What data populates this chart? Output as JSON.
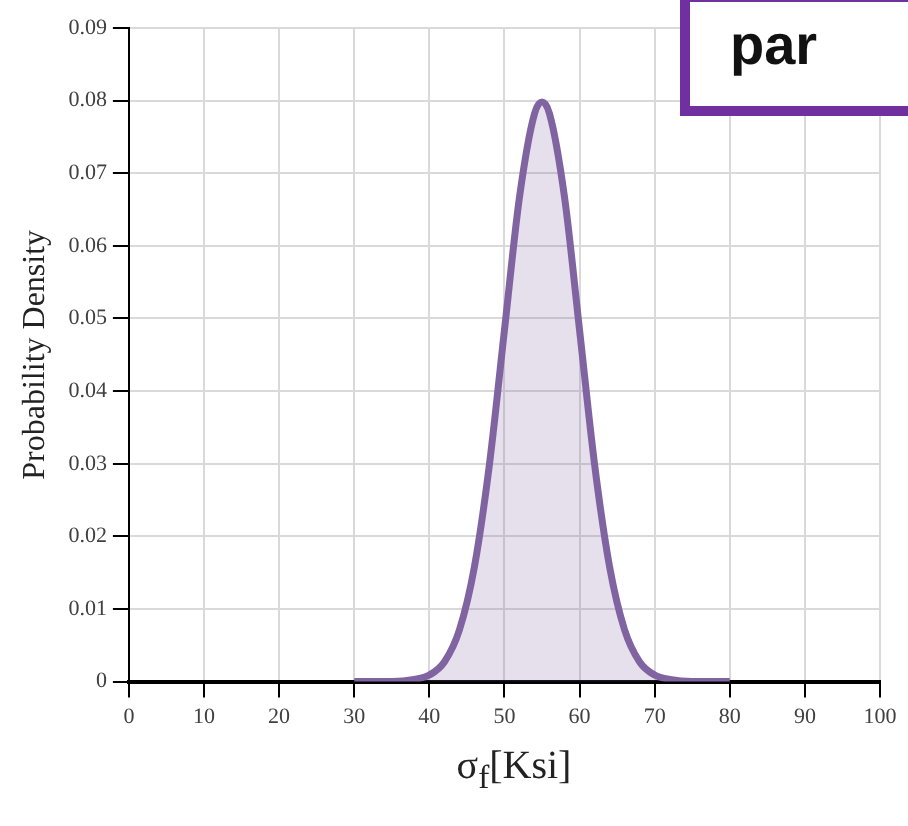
{
  "chart_data": {
    "type": "area",
    "xlabel": "σ$_{f}$[Ksi]",
    "ylabel": "Probability Density",
    "annotations": [
      "par"
    ],
    "x": [
      30,
      35,
      38,
      40,
      42,
      44,
      46,
      48,
      50,
      52,
      54,
      55,
      56,
      58,
      60,
      62,
      64,
      66,
      68,
      70,
      72,
      75,
      80
    ],
    "series": [
      {
        "color": "#8064a2",
        "values": [
          0,
          0,
          0.0003,
          0.0009,
          0.0027,
          0.0071,
          0.0158,
          0.0299,
          0.0484,
          0.0667,
          0.0782,
          0.0798,
          0.0782,
          0.0667,
          0.0484,
          0.0299,
          0.0158,
          0.0071,
          0.0027,
          0.0009,
          0.0003,
          0,
          0
        ]
      }
    ],
    "xlim": [
      0,
      100
    ],
    "xticks": [
      0,
      10,
      20,
      30,
      40,
      50,
      60,
      70,
      80,
      90,
      100
    ],
    "ylim": [
      0,
      0.09
    ],
    "yticks": [
      0,
      0.01,
      0.02,
      0.03,
      0.04,
      0.05,
      0.06,
      0.07,
      0.08,
      0.09
    ],
    "grid": true,
    "marker": "none",
    "line_style": "solid"
  }
}
